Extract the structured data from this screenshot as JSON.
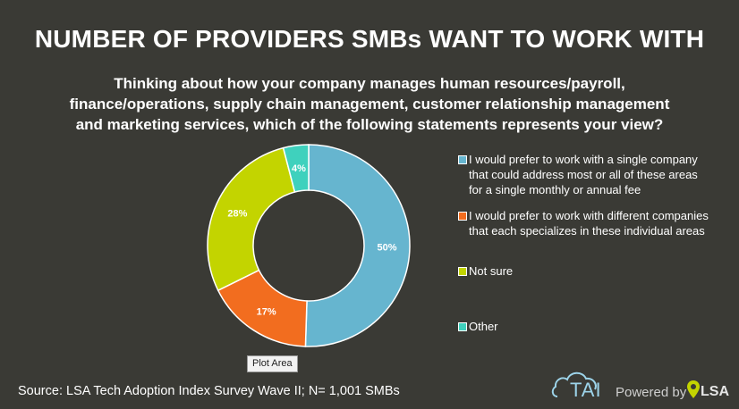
{
  "chart_data": {
    "type": "pie",
    "donut": true,
    "title": "NUMBER OF PROVIDERS SMBs WANT TO WORK WITH",
    "subtitle": "Thinking about how your company manages human resources/payroll, finance/operations, supply chain management, customer relationship management and marketing services, which of the following statements represents your view?",
    "slices": [
      {
        "label": "I would prefer to work with a single company that could address most or all of these areas for a single monthly or annual fee",
        "value": 50,
        "data_label": "50%",
        "color": "#66b5cf"
      },
      {
        "label": "I would prefer to work with different companies that each specializes in these individual areas",
        "value": 17,
        "data_label": "17%",
        "color": "#f26d1f"
      },
      {
        "label": "Not sure",
        "value": 28,
        "data_label": "28%",
        "color": "#c3d400"
      },
      {
        "label": "Other",
        "value": 4,
        "data_label": "4%",
        "color": "#3fd1bd"
      }
    ],
    "legend_position": "right"
  },
  "tooltip": "Plot Area",
  "source": "Source: LSA Tech Adoption Index Survey Wave II; N= 1,001 SMBs",
  "brand": {
    "tai": "TAI",
    "powered_by": "Powered by",
    "lsa": "LSA"
  },
  "colors": {
    "background": "#3a3a35",
    "cloud": "#9dd4ea",
    "pin": "#c3d400"
  },
  "icons": {
    "cloud": "cloud-icon",
    "pin": "location-pin-icon"
  }
}
